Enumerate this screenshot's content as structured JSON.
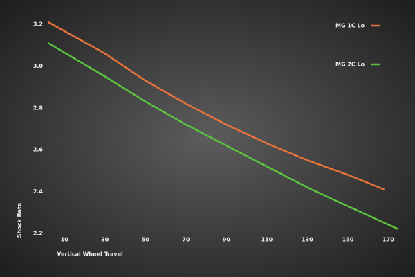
{
  "chart_data": {
    "type": "line",
    "x_label": "Vertical Wheel Travel",
    "y_label": "Shock Rate",
    "series": [
      {
        "name": "MG 1C Lo",
        "color": "#e8743b",
        "x": [
          2,
          30,
          50,
          70,
          90,
          110,
          130,
          150,
          168
        ],
        "values": [
          3.21,
          3.06,
          2.93,
          2.82,
          2.72,
          2.63,
          2.55,
          2.48,
          2.41
        ]
      },
      {
        "name": "MG 2C Lo",
        "color": "#5cc43e",
        "x": [
          2,
          30,
          50,
          70,
          90,
          110,
          130,
          150,
          175
        ],
        "values": [
          3.11,
          2.95,
          2.83,
          2.72,
          2.62,
          2.52,
          2.42,
          2.33,
          2.22
        ]
      }
    ],
    "xlim": [
      0,
      176
    ],
    "xticks": [
      10,
      30,
      50,
      70,
      90,
      110,
      130,
      150,
      170
    ],
    "ylim": [
      2.2,
      3.2
    ],
    "yticks": [
      {
        "value": 2.2,
        "label": "2.2"
      },
      {
        "value": 2.4,
        "label": "2.4"
      },
      {
        "value": 2.6,
        "label": "2.6"
      },
      {
        "value": 2.8,
        "label": "2.8"
      },
      {
        "value": 3,
        "label": "3.0"
      },
      {
        "value": 3.2,
        "label": "3.2"
      }
    ],
    "grid": false,
    "legend": "upper right"
  }
}
